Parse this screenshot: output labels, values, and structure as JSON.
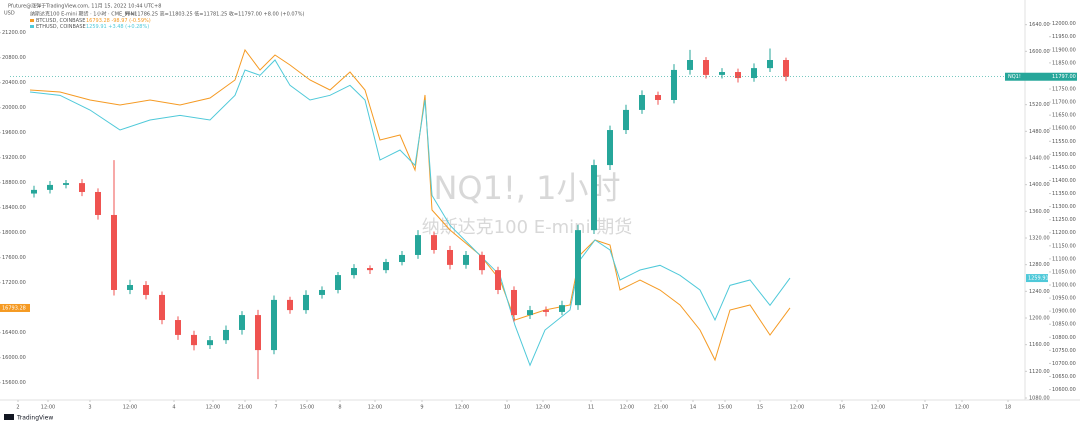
{
  "header": {
    "source": "Pfuture@涨弹于TradingView.com, 11月 15, 2022 10:44 UTC+8",
    "currency": "USD"
  },
  "legend": {
    "main": "纳斯达克100 E-mini 期货 · 1小时 · CME_MINI",
    "main_values": "开=11786.25 高=11803.25 低=11781.25 收=11797.00 +8.00 (+0.07%)"
  },
  "watermark": {
    "title": "NQ1!, 1小时",
    "subtitle": "纳斯达克100 E-mini 期货"
  },
  "footer": "TradingView",
  "chart_data": {
    "type": "candlestick",
    "name": "NQ1!",
    "last_label": "11797.00",
    "up_color": "#26a69a",
    "down_color": "#ef5350",
    "xlim": [
      0,
      253.75
    ],
    "xticks": [
      {
        "value": 2,
        "label": "2"
      },
      {
        "value": 9.5,
        "label": "12:00"
      },
      {
        "value": 20,
        "label": "3"
      },
      {
        "value": 30,
        "label": "12:00"
      },
      {
        "value": 41,
        "label": "4"
      },
      {
        "value": 50.75,
        "label": "12:00"
      },
      {
        "value": 58.75,
        "label": "21:00"
      },
      {
        "value": 66.5,
        "label": "7"
      },
      {
        "value": 74.25,
        "label": "15:00"
      },
      {
        "value": 82.5,
        "label": "8"
      },
      {
        "value": 91.25,
        "label": "12:00"
      },
      {
        "value": 103,
        "label": "9"
      },
      {
        "value": 113,
        "label": "12:00"
      },
      {
        "value": 124.25,
        "label": "10"
      },
      {
        "value": 133.25,
        "label": "12:00"
      },
      {
        "value": 145.25,
        "label": "11"
      },
      {
        "value": 154.25,
        "label": "12:00"
      },
      {
        "value": 162.75,
        "label": "21:00"
      },
      {
        "value": 170.75,
        "label": "14"
      },
      {
        "value": 178.75,
        "label": "15:00"
      },
      {
        "value": 187.5,
        "label": "15"
      },
      {
        "value": 196.75,
        "label": "12:00"
      },
      {
        "value": 208,
        "label": "16"
      },
      {
        "value": 217,
        "label": "12:00"
      },
      {
        "value": 228.75,
        "label": "17"
      },
      {
        "value": 238,
        "label": "12:00"
      },
      {
        "value": 249.5,
        "label": "18"
      }
    ],
    "ylim": [
      10560,
      12060
    ],
    "yticks": [
      {
        "value": 10600,
        "label": "10600.00"
      },
      {
        "value": 10650,
        "label": "10650.00"
      },
      {
        "value": 10700,
        "label": "10700.00"
      },
      {
        "value": 10750,
        "label": "10750.00"
      },
      {
        "value": 10800,
        "label": "10800.00"
      },
      {
        "value": 10850,
        "label": "10850.00"
      },
      {
        "value": 10900,
        "label": "10900.00"
      },
      {
        "value": 10950,
        "label": "10950.00"
      },
      {
        "value": 11000,
        "label": "11000.00"
      },
      {
        "value": 11050,
        "label": "11050.00"
      },
      {
        "value": 11100,
        "label": "11100.00"
      },
      {
        "value": 11150,
        "label": "11150.00"
      },
      {
        "value": 11200,
        "label": "11200.00"
      },
      {
        "value": 11250,
        "label": "11250.00"
      },
      {
        "value": 11300,
        "label": "11300.00"
      },
      {
        "value": 11350,
        "label": "11350.00"
      },
      {
        "value": 11400,
        "label": "11400.00"
      },
      {
        "value": 11450,
        "label": "11450.00"
      },
      {
        "value": 11500,
        "label": "11500.00"
      },
      {
        "value": 11550,
        "label": "11550.00"
      },
      {
        "value": 11600,
        "label": "11600.00"
      },
      {
        "value": 11650,
        "label": "11650.00"
      },
      {
        "value": 11700,
        "label": "11700.00"
      },
      {
        "value": 11750,
        "label": "11750.00"
      },
      {
        "value": 11800,
        "label": "11800.00"
      },
      {
        "value": 11850,
        "label": "11850.00"
      },
      {
        "value": 11900,
        "label": "11900.00"
      },
      {
        "value": 11950,
        "label": "11950.00"
      },
      {
        "value": 12000,
        "label": "12000.00"
      }
    ],
    "y2lim": [
      1077,
      1665
    ],
    "y2ticks": [
      {
        "value": 1080,
        "label": "1080.00"
      },
      {
        "value": 1120,
        "label": "1120.00"
      },
      {
        "value": 1160,
        "label": "1160.00"
      },
      {
        "value": 1200,
        "label": "1200.00"
      },
      {
        "value": 1240,
        "label": "1240.00"
      },
      {
        "value": 1280,
        "label": "1280.00"
      },
      {
        "value": 1320,
        "label": "1320.00"
      },
      {
        "value": 1360,
        "label": "1360.00"
      },
      {
        "value": 1400,
        "label": "1400.00"
      },
      {
        "value": 1440,
        "label": "1440.00"
      },
      {
        "value": 1480,
        "label": "1480.00"
      },
      {
        "value": 1520,
        "label": "1520.00"
      },
      {
        "value": 1560,
        "label": "1560.00"
      },
      {
        "value": 1600,
        "label": "1600.00"
      },
      {
        "value": 1640,
        "label": "1640.00"
      }
    ],
    "y3lim": [
      15321,
      21593
    ],
    "y3ticks": [
      {
        "value": 15600,
        "label": "15600.00"
      },
      {
        "value": 16000,
        "label": "16000.00"
      },
      {
        "value": 16400,
        "label": "16400.00"
      },
      {
        "value": 16800,
        "label": "16800.00"
      },
      {
        "value": 17200,
        "label": "17200.00"
      },
      {
        "value": 17600,
        "label": "17600.00"
      },
      {
        "value": 18000,
        "label": "18000.00"
      },
      {
        "value": 18400,
        "label": "18400.00"
      },
      {
        "value": 18800,
        "label": "18800.00"
      },
      {
        "value": 19200,
        "label": "19200.00"
      },
      {
        "value": 19600,
        "label": "19600.00"
      },
      {
        "value": 20000,
        "label": "20000.00"
      },
      {
        "value": 20400,
        "label": "20400.00"
      },
      {
        "value": 20800,
        "label": "20800.00"
      },
      {
        "value": 21200,
        "label": "21200.00"
      }
    ],
    "grid": false,
    "x": [
      6,
      10,
      14,
      18,
      22,
      26,
      30,
      34,
      38,
      42,
      46,
      50,
      54,
      58,
      62,
      66,
      70,
      74,
      78,
      82,
      86,
      90,
      94,
      98,
      102,
      106,
      110,
      114,
      118,
      122,
      126,
      130,
      134,
      138,
      142,
      146,
      150,
      154,
      158,
      162,
      166,
      170,
      174,
      178,
      182,
      186,
      190,
      194
    ],
    "open": [
      11350,
      11364,
      11383,
      11390,
      11356,
      11268,
      10981,
      11000,
      10962,
      10866,
      10809,
      10770,
      10789,
      10828,
      10885,
      10751,
      10943,
      10904,
      10962,
      10981,
      11038,
      11065,
      11057,
      11088,
      11115,
      11191,
      11134,
      11077,
      11115,
      11057,
      10981,
      10885,
      10904,
      10897,
      10923,
      11210,
      11459,
      11593,
      11670,
      11727,
      11708,
      11823,
      11861,
      11804,
      11815,
      11792,
      11830,
      11861
    ],
    "high": [
      11380,
      11398,
      11402,
      11405,
      11370,
      11478,
      11020,
      11015,
      10975,
      10880,
      10825,
      10805,
      10845,
      10900,
      10905,
      10960,
      10955,
      10980,
      10995,
      11050,
      11080,
      11075,
      11100,
      11130,
      11210,
      11205,
      11150,
      11130,
      11128,
      11070,
      10995,
      10920,
      10918,
      10940,
      11230,
      11480,
      11610,
      11690,
      11745,
      11740,
      11845,
      11900,
      11872,
      11830,
      11828,
      11848,
      11905,
      11870
    ],
    "low": [
      11335,
      11350,
      11370,
      11340,
      11250,
      10960,
      10965,
      10945,
      10850,
      10790,
      10750,
      10755,
      10775,
      10810,
      10640,
      10735,
      10890,
      10890,
      10948,
      10968,
      11025,
      11042,
      11045,
      11075,
      11100,
      11120,
      11060,
      11062,
      11040,
      10965,
      10860,
      10870,
      10880,
      10885,
      10905,
      11195,
      11440,
      11578,
      11655,
      11690,
      11695,
      11805,
      11790,
      11790,
      11775,
      11778,
      11815,
      11780
    ],
    "close": [
      11364,
      11383,
      11390,
      11356,
      11268,
      10981,
      11000,
      10962,
      10866,
      10809,
      10770,
      10789,
      10828,
      10885,
      10751,
      10943,
      10904,
      10962,
      10981,
      11038,
      11065,
      11057,
      11088,
      11115,
      11191,
      11134,
      11077,
      11115,
      11057,
      10981,
      10885,
      10904,
      10897,
      10923,
      11210,
      11459,
      11593,
      11670,
      11727,
      11708,
      11823,
      11861,
      11804,
      11815,
      11792,
      11830,
      11861,
      11797
    ],
    "series": [
      {
        "name": "BTCUSD, COINBASE",
        "legend_value": "16793.28 -98.97 (-0.59%)",
        "last_label": "16793.28",
        "color": "#f59a23",
        "axis": "y3",
        "x": [
          5,
          12.5,
          20,
          27.5,
          35,
          42.5,
          50,
          56.25,
          58.75,
          62.5,
          66.25,
          70,
          75,
          80,
          85,
          88.75,
          92.5,
          97.5,
          101.25,
          103.75,
          105.5,
          110,
          117.5,
          122.5,
          126.25,
          130,
          133.75,
          140,
          142.5,
          146.25,
          150,
          152.5,
          157.5,
          162.5,
          167.5,
          172.5,
          176.25,
          180,
          185,
          190,
          195
        ],
        "values": [
          20281,
          20249,
          20121,
          20041,
          20121,
          20041,
          20153,
          20441,
          20921,
          20601,
          20841,
          20681,
          20441,
          20281,
          20569,
          20281,
          19481,
          19561,
          19001,
          20201,
          18361,
          18041,
          17641,
          17241,
          16601,
          16681,
          16761,
          16841,
          17641,
          17881,
          17801,
          17081,
          17241,
          17081,
          16841,
          16441,
          15961,
          16761,
          16841,
          16361,
          16793.28
        ]
      },
      {
        "name": "ETHUSD, COINBASE",
        "legend_value": "1259.91 +3.48 (+0.28%)",
        "last_label": "1259.91",
        "color": "#4fc9d9",
        "axis": "y2",
        "x": [
          5,
          12.5,
          20,
          27.5,
          35,
          42.5,
          50,
          56.25,
          58.75,
          62.5,
          66.25,
          70,
          75,
          80,
          85,
          88.75,
          92.5,
          97.5,
          101.25,
          103.75,
          105.5,
          110,
          117.5,
          122.5,
          126.25,
          130,
          133.75,
          140,
          142.5,
          146.25,
          150,
          152.5,
          157.5,
          162.5,
          167.5,
          172.5,
          176.25,
          180,
          185,
          190,
          195
        ],
        "values": [
          1539,
          1534,
          1512,
          1482,
          1497,
          1504,
          1497,
          1534,
          1572,
          1564,
          1587,
          1549,
          1527,
          1534,
          1549,
          1527,
          1437,
          1452,
          1429,
          1527,
          1384,
          1339,
          1294,
          1264,
          1189,
          1129,
          1182,
          1212,
          1287,
          1317,
          1302,
          1257,
          1272,
          1279,
          1264,
          1242,
          1197,
          1249,
          1257,
          1219,
          1259.91
        ]
      }
    ]
  }
}
